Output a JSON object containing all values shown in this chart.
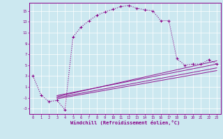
{
  "xlabel": "Windchill (Refroidissement éolien,°C)",
  "bg_color": "#cce8f0",
  "line_color": "#880088",
  "grid_color": "#ffffff",
  "xlim": [
    -0.5,
    23.5
  ],
  "ylim": [
    -4.0,
    16.5
  ],
  "xticks": [
    0,
    1,
    2,
    3,
    4,
    5,
    6,
    7,
    8,
    9,
    10,
    11,
    12,
    13,
    14,
    15,
    16,
    17,
    18,
    19,
    20,
    21,
    22,
    23
  ],
  "yticks": [
    -3,
    -1,
    1,
    3,
    5,
    7,
    9,
    11,
    13,
    15
  ],
  "main_x": [
    0,
    1,
    2,
    3,
    4,
    5,
    6,
    7,
    8,
    9,
    10,
    11,
    12,
    13,
    14,
    15,
    16,
    17,
    18,
    19,
    20,
    21,
    22,
    23
  ],
  "main_y": [
    3.0,
    -0.5,
    -1.7,
    -1.5,
    -3.2,
    10.2,
    12.0,
    13.2,
    14.2,
    14.8,
    15.3,
    15.8,
    16.0,
    15.5,
    15.2,
    15.0,
    13.2,
    13.2,
    6.2,
    5.0,
    5.2,
    5.2,
    6.0,
    5.2
  ],
  "lines": [
    {
      "x": [
        3,
        23
      ],
      "y": [
        -0.8,
        5.8
      ]
    },
    {
      "x": [
        3,
        23
      ],
      "y": [
        -1.0,
        4.5
      ]
    },
    {
      "x": [
        3,
        23
      ],
      "y": [
        -1.2,
        4.0
      ]
    },
    {
      "x": [
        3,
        23
      ],
      "y": [
        -0.6,
        5.2
      ]
    }
  ]
}
